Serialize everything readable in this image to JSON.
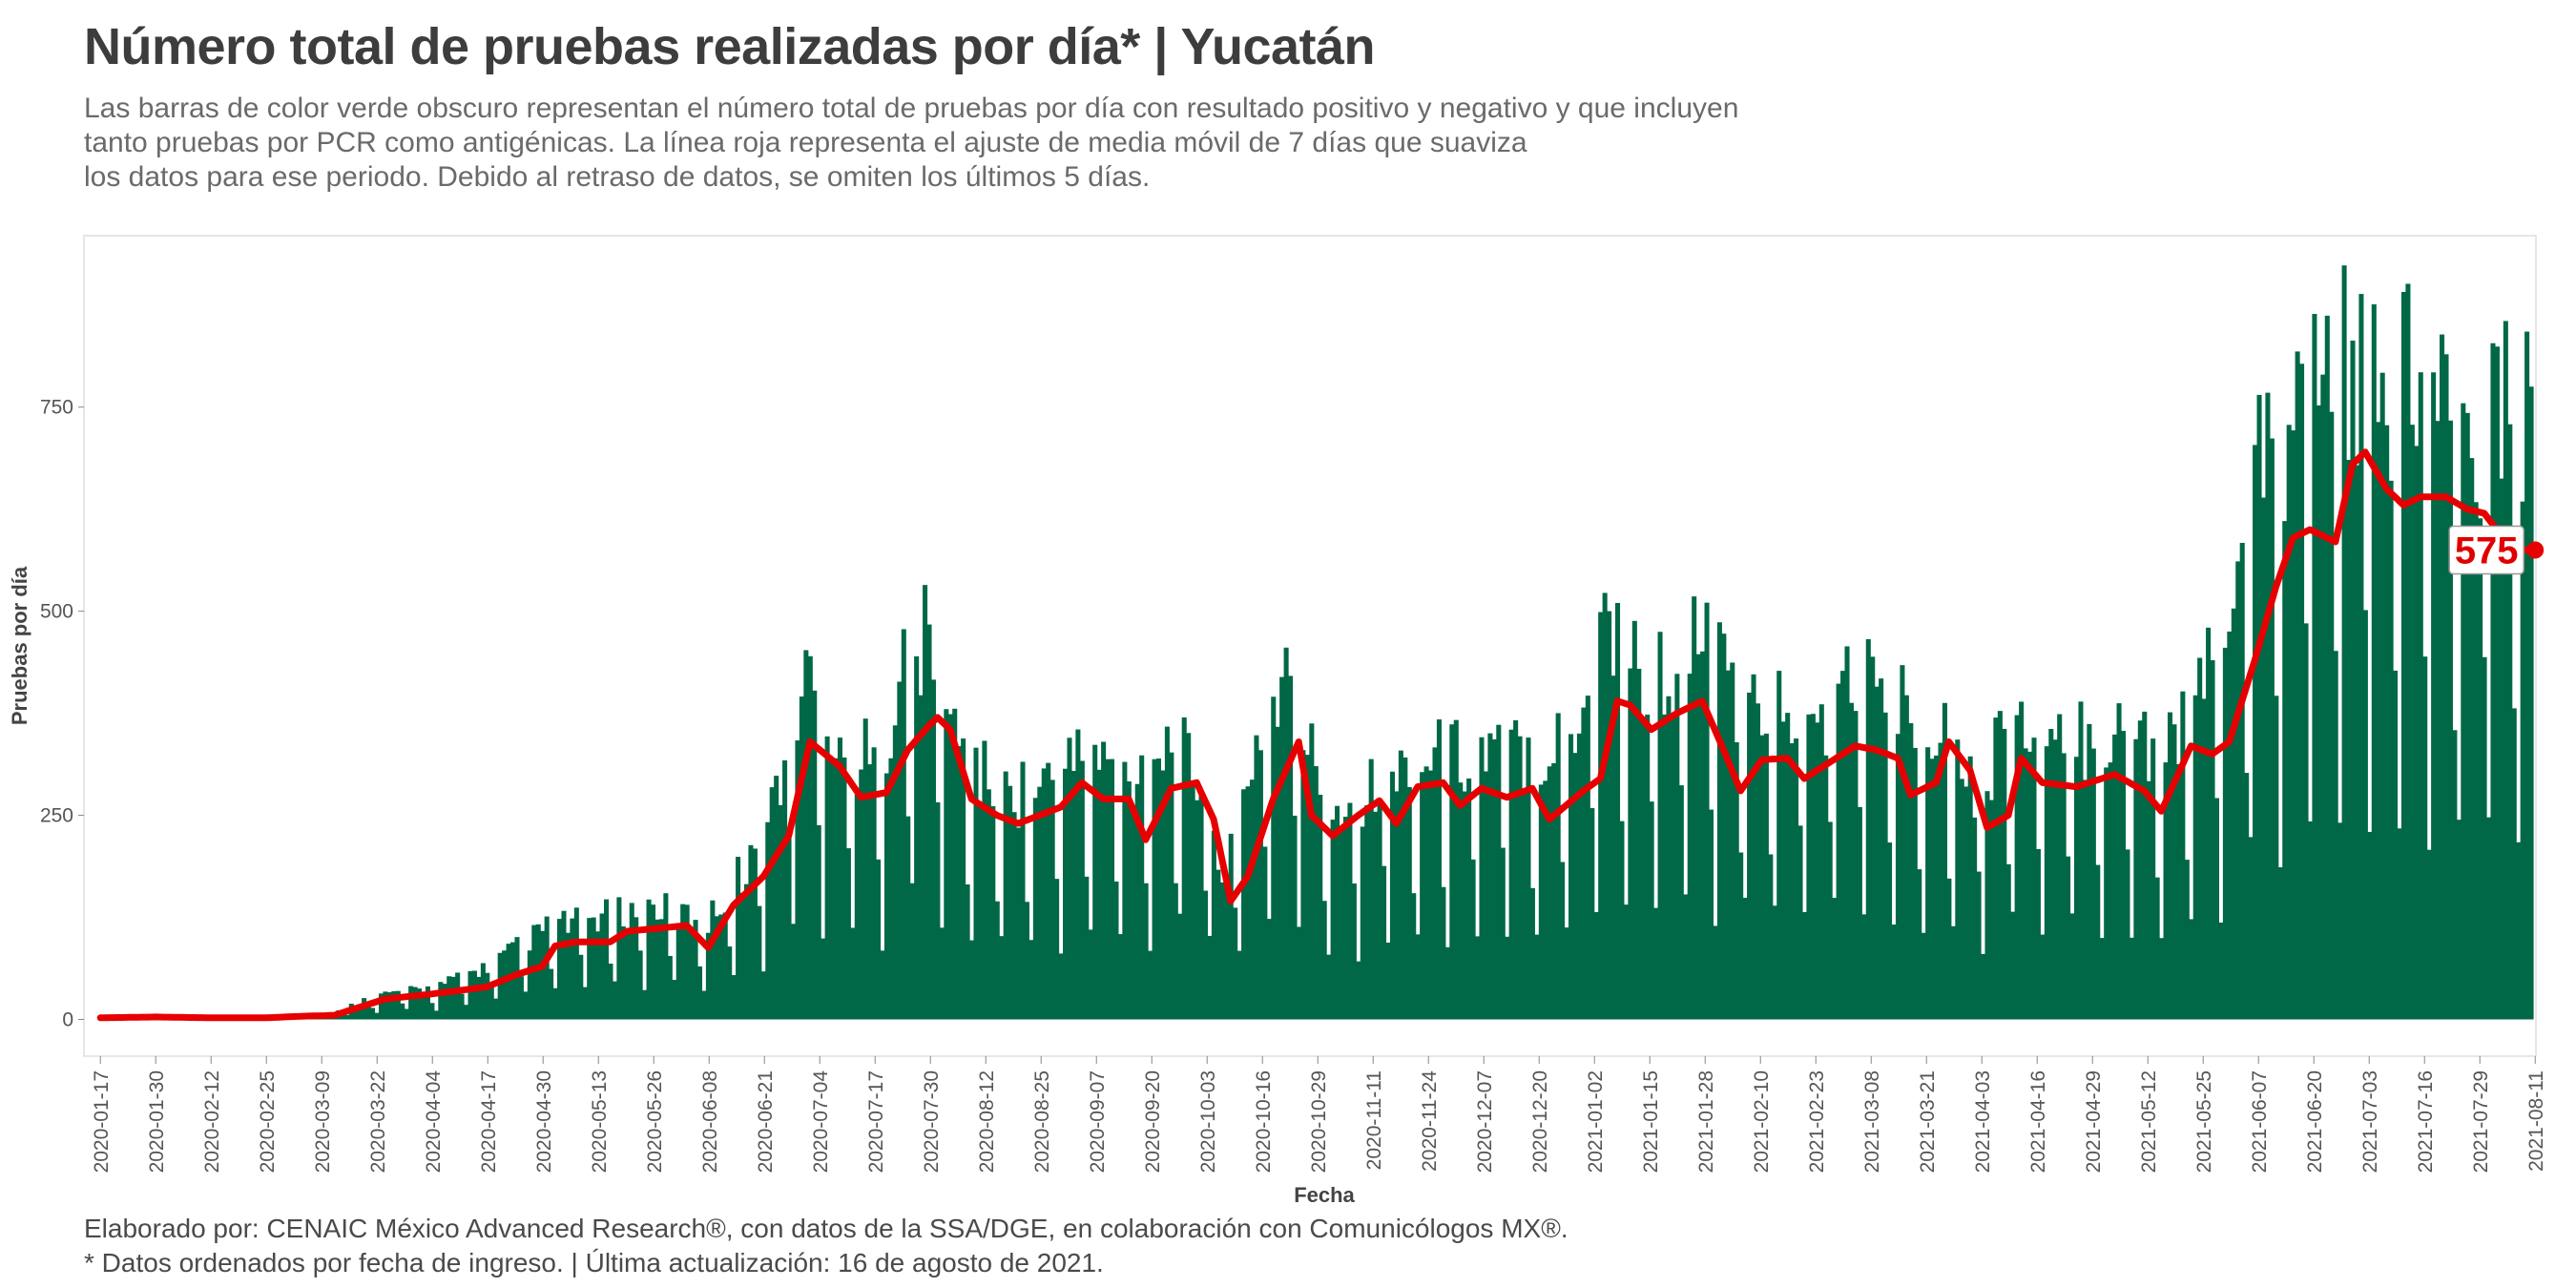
{
  "header": {
    "title": "Número total de pruebas realizadas por día* | Yucatán",
    "subtitle_lines": [
      "Las barras de color verde obscuro representan el número total de pruebas por día con resultado positivo y negativo y que incluyen",
      "tanto pruebas por PCR como antigénicas. La línea roja representa el ajuste de media móvil de 7 días que suaviza",
      "los datos para ese periodo. Debido al retraso de datos, se omiten los últimos 5 días."
    ]
  },
  "footer": {
    "line1": "Elaborado por: CENAIC México Advanced Research®, con datos de la SSA/DGE, en colaboración con Comunicólogos MX®.",
    "line2": "* Datos ordenados por fecha de ingreso. | Última actualización: 16 de agosto de 2021."
  },
  "colors": {
    "bars": "#006847",
    "line": "#e60000",
    "panel_border": "#dddddd",
    "grid": "#f2f2f2"
  },
  "chart_data": {
    "type": "bar",
    "title": "Número total de pruebas realizadas por día* | Yucatán",
    "xlabel": "Fecha",
    "ylabel": "Pruebas por día",
    "ylim": [
      -45,
      960
    ],
    "grid": false,
    "x_range": [
      "2020-01-17",
      "2021-08-11"
    ],
    "x_ticks": [
      "2020-01-17",
      "2020-01-30",
      "2020-02-12",
      "2020-02-25",
      "2020-03-09",
      "2020-03-22",
      "2020-04-04",
      "2020-04-17",
      "2020-04-30",
      "2020-05-13",
      "2020-05-26",
      "2020-06-08",
      "2020-06-21",
      "2020-07-04",
      "2020-07-17",
      "2020-07-30",
      "2020-08-12",
      "2020-08-25",
      "2020-09-07",
      "2020-09-20",
      "2020-10-03",
      "2020-10-16",
      "2020-10-29",
      "2020-11-11",
      "2020-11-24",
      "2020-12-07",
      "2020-12-20",
      "2021-01-02",
      "2021-01-15",
      "2021-01-28",
      "2021-02-10",
      "2021-02-23",
      "2021-03-08",
      "2021-03-21",
      "2021-04-03",
      "2021-04-16",
      "2021-04-29",
      "2021-05-12",
      "2021-05-25",
      "2021-06-07",
      "2021-06-20",
      "2021-07-03",
      "2021-07-16",
      "2021-07-29",
      "2021-08-11"
    ],
    "y_ticks": [
      0,
      250,
      500,
      750
    ],
    "series": [
      {
        "type": "bar",
        "description": "Total de pruebas por día (weekly profile of weekday values with weekend dips)",
        "weekly_peaks": [
          [
            "2020-03-09",
            3
          ],
          [
            "2020-03-22",
            35
          ],
          [
            "2020-04-04",
            45
          ],
          [
            "2020-04-17",
            75
          ],
          [
            "2020-05-01",
            130
          ],
          [
            "2020-05-13",
            145
          ],
          [
            "2020-05-26",
            160
          ],
          [
            "2020-06-08",
            140
          ],
          [
            "2020-06-21",
            260
          ],
          [
            "2020-07-01",
            490
          ],
          [
            "2020-07-10",
            390
          ],
          [
            "2020-07-18",
            360
          ],
          [
            "2020-07-25",
            520
          ],
          [
            "2020-07-30",
            540
          ],
          [
            "2020-08-05",
            400
          ],
          [
            "2020-08-15",
            320
          ],
          [
            "2020-08-25",
            330
          ],
          [
            "2020-09-05",
            380
          ],
          [
            "2020-09-15",
            340
          ],
          [
            "2020-09-25",
            400
          ],
          [
            "2020-10-03",
            330
          ],
          [
            "2020-10-08",
            200
          ],
          [
            "2020-10-15",
            400
          ],
          [
            "2020-10-22",
            490
          ],
          [
            "2020-11-01",
            300
          ],
          [
            "2020-11-11",
            330
          ],
          [
            "2020-11-24",
            370
          ],
          [
            "2020-12-07",
            380
          ],
          [
            "2020-12-20",
            380
          ],
          [
            "2020-12-28",
            400
          ],
          [
            "2021-01-05",
            580
          ],
          [
            "2021-01-15",
            480
          ],
          [
            "2021-01-28",
            540
          ],
          [
            "2021-02-05",
            440
          ],
          [
            "2021-02-15",
            450
          ],
          [
            "2021-02-23",
            420
          ],
          [
            "2021-03-05",
            500
          ],
          [
            "2021-03-15",
            440
          ],
          [
            "2021-03-25",
            430
          ],
          [
            "2021-04-03",
            320
          ],
          [
            "2021-04-10",
            440
          ],
          [
            "2021-04-20",
            370
          ],
          [
            "2021-04-29",
            410
          ],
          [
            "2021-05-08",
            400
          ],
          [
            "2021-05-16",
            400
          ],
          [
            "2021-05-25",
            450
          ],
          [
            "2021-06-03",
            600
          ],
          [
            "2021-06-08",
            770
          ],
          [
            "2021-06-15",
            820
          ],
          [
            "2021-06-22",
            910
          ],
          [
            "2021-06-27",
            940
          ],
          [
            "2021-07-05",
            880
          ],
          [
            "2021-07-12",
            910
          ],
          [
            "2021-07-20",
            840
          ],
          [
            "2021-07-28",
            840
          ],
          [
            "2021-08-06",
            860
          ],
          [
            "2021-08-11",
            860
          ]
        ]
      },
      {
        "type": "line",
        "description": "Media móvil de 7 días",
        "points": [
          [
            "2020-01-17",
            2
          ],
          [
            "2020-01-30",
            3
          ],
          [
            "2020-02-12",
            2
          ],
          [
            "2020-02-25",
            2
          ],
          [
            "2020-03-05",
            4
          ],
          [
            "2020-03-12",
            5
          ],
          [
            "2020-03-18",
            15
          ],
          [
            "2020-03-24",
            25
          ],
          [
            "2020-04-02",
            30
          ],
          [
            "2020-04-10",
            35
          ],
          [
            "2020-04-17",
            40
          ],
          [
            "2020-04-24",
            55
          ],
          [
            "2020-04-30",
            65
          ],
          [
            "2020-05-03",
            90
          ],
          [
            "2020-05-08",
            95
          ],
          [
            "2020-05-16",
            95
          ],
          [
            "2020-05-20",
            108
          ],
          [
            "2020-05-28",
            112
          ],
          [
            "2020-06-03",
            115
          ],
          [
            "2020-06-08",
            88
          ],
          [
            "2020-06-14",
            140
          ],
          [
            "2020-06-21",
            175
          ],
          [
            "2020-06-27",
            225
          ],
          [
            "2020-07-02",
            340
          ],
          [
            "2020-07-09",
            310
          ],
          [
            "2020-07-14",
            272
          ],
          [
            "2020-07-20",
            278
          ],
          [
            "2020-07-25",
            330
          ],
          [
            "2020-07-30",
            360
          ],
          [
            "2020-08-01",
            370
          ],
          [
            "2020-08-04",
            355
          ],
          [
            "2020-08-09",
            270
          ],
          [
            "2020-08-15",
            250
          ],
          [
            "2020-08-20",
            240
          ],
          [
            "2020-08-25",
            250
          ],
          [
            "2020-08-30",
            260
          ],
          [
            "2020-09-04",
            290
          ],
          [
            "2020-09-09",
            270
          ],
          [
            "2020-09-15",
            270
          ],
          [
            "2020-09-19",
            220
          ],
          [
            "2020-09-25",
            283
          ],
          [
            "2020-10-01",
            290
          ],
          [
            "2020-10-05",
            245
          ],
          [
            "2020-10-09",
            145
          ],
          [
            "2020-10-13",
            175
          ],
          [
            "2020-10-19",
            270
          ],
          [
            "2020-10-25",
            340
          ],
          [
            "2020-10-28",
            250
          ],
          [
            "2020-11-02",
            225
          ],
          [
            "2020-11-08",
            250
          ],
          [
            "2020-11-13",
            268
          ],
          [
            "2020-11-17",
            240
          ],
          [
            "2020-11-22",
            285
          ],
          [
            "2020-11-28",
            290
          ],
          [
            "2020-12-02",
            262
          ],
          [
            "2020-12-07",
            283
          ],
          [
            "2020-12-13",
            272
          ],
          [
            "2020-12-19",
            283
          ],
          [
            "2020-12-23",
            245
          ],
          [
            "2020-12-31",
            280
          ],
          [
            "2021-01-04",
            295
          ],
          [
            "2021-01-08",
            390
          ],
          [
            "2021-01-11",
            385
          ],
          [
            "2021-01-16",
            355
          ],
          [
            "2021-01-22",
            375
          ],
          [
            "2021-01-28",
            390
          ],
          [
            "2021-02-02",
            330
          ],
          [
            "2021-02-06",
            280
          ],
          [
            "2021-02-11",
            318
          ],
          [
            "2021-02-17",
            320
          ],
          [
            "2021-02-21",
            295
          ],
          [
            "2021-02-27",
            315
          ],
          [
            "2021-03-05",
            335
          ],
          [
            "2021-03-10",
            330
          ],
          [
            "2021-03-15",
            320
          ],
          [
            "2021-03-18",
            275
          ],
          [
            "2021-03-24",
            290
          ],
          [
            "2021-03-27",
            340
          ],
          [
            "2021-04-01",
            305
          ],
          [
            "2021-04-05",
            235
          ],
          [
            "2021-04-10",
            250
          ],
          [
            "2021-04-13",
            320
          ],
          [
            "2021-04-18",
            290
          ],
          [
            "2021-04-26",
            285
          ],
          [
            "2021-05-05",
            300
          ],
          [
            "2021-05-12",
            280
          ],
          [
            "2021-05-16",
            255
          ],
          [
            "2021-05-23",
            335
          ],
          [
            "2021-05-28",
            325
          ],
          [
            "2021-06-01",
            340
          ],
          [
            "2021-06-07",
            440
          ],
          [
            "2021-06-12",
            530
          ],
          [
            "2021-06-16",
            590
          ],
          [
            "2021-06-20",
            600
          ],
          [
            "2021-06-26",
            585
          ],
          [
            "2021-06-30",
            680
          ],
          [
            "2021-07-03",
            695
          ],
          [
            "2021-07-08",
            650
          ],
          [
            "2021-07-12",
            630
          ],
          [
            "2021-07-16",
            640
          ],
          [
            "2021-07-22",
            640
          ],
          [
            "2021-07-27",
            625
          ],
          [
            "2021-07-31",
            620
          ],
          [
            "2021-08-03",
            600
          ],
          [
            "2021-08-06",
            575
          ],
          [
            "2021-08-11",
            575
          ]
        ]
      }
    ],
    "annotation": {
      "date": "2021-08-11",
      "value": 575,
      "label": "575"
    }
  }
}
